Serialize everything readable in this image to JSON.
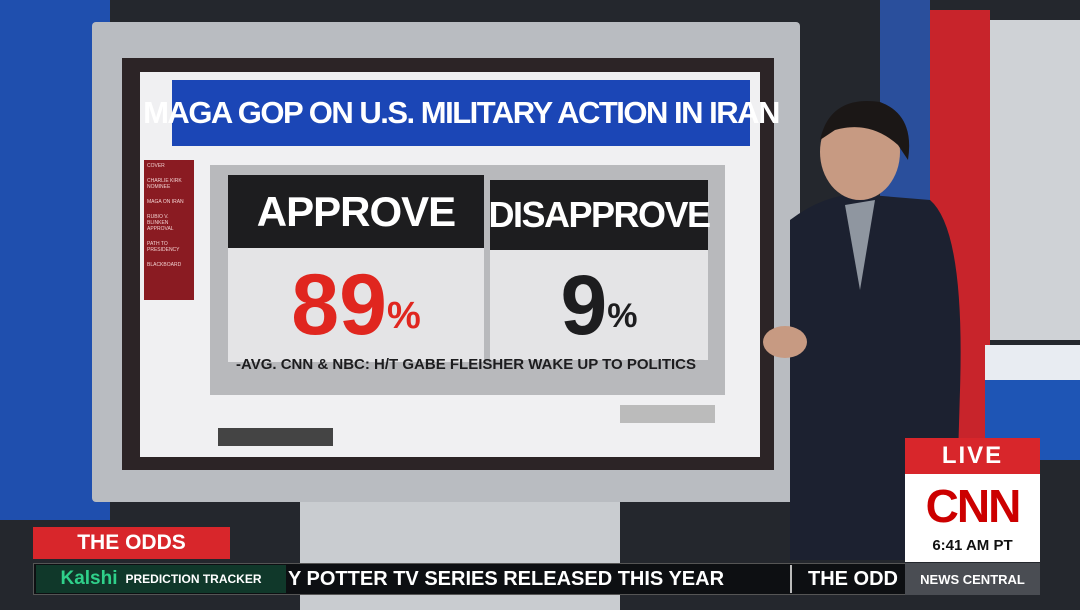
{
  "screen": {
    "title": "MAGA GOP ON U.S. MILITARY ACTION IN IRAN",
    "menu_left": [
      "COVER",
      "CHARLIE KIRK NOMINEE",
      "MAGA ON IRAN",
      "RUBIO V. BLINKEN APPROVAL",
      "PATH TO PRESIDENCY",
      "BLACKBOARD"
    ],
    "approve": {
      "label": "APPROVE",
      "value": 89,
      "unit": "%"
    },
    "disapprove": {
      "label": "DISAPPROVE",
      "value": 9,
      "unit": "%"
    },
    "source": "-AVG. CNN & NBC: H/T GABE FLEISHER WAKE UP TO POLITICS"
  },
  "lower_third": {
    "label": "THE ODDS",
    "brand": "Kalshi",
    "tracker": "PREDICTION TRACKER",
    "ticker": "Y POTTER TV SERIES RELEASED THIS YEAR",
    "ticker_next": "THE ODD"
  },
  "bug": {
    "live": "LIVE",
    "network": "CNN",
    "time": "6:41 AM PT",
    "show": "NEWS CENTRAL"
  }
}
